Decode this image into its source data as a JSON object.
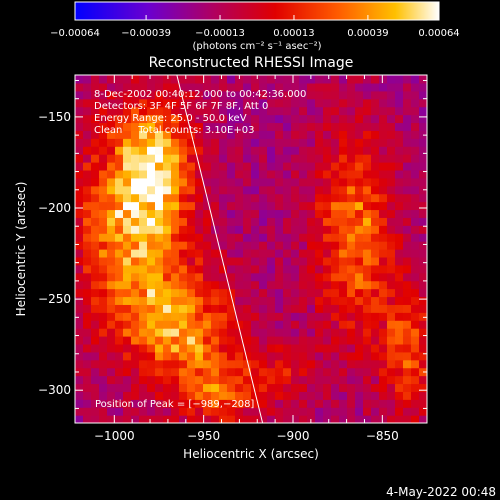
{
  "chart_data": {
    "type": "heatmap",
    "title": "Reconstructed RHESSI Image",
    "xlabel": "Heliocentric X (arcsec)",
    "ylabel": "Heliocentric Y (arcsec)",
    "xlim": [
      -1022,
      -825
    ],
    "ylim": [
      -318,
      -127
    ],
    "x_ticks": [
      -1000,
      -950,
      -900,
      -850
    ],
    "y_ticks": [
      -150,
      -200,
      -250,
      -300
    ],
    "x_tick_labels": [
      "−1000",
      "−950",
      "−900",
      "−850"
    ],
    "y_tick_labels": [
      "−150",
      "−200",
      "−250",
      "−300"
    ],
    "colorbar": {
      "min": -0.00064,
      "max": 0.00064,
      "ticks": [
        -0.00064,
        -0.00039,
        -0.00013,
        0.00013,
        0.00039,
        0.00064
      ],
      "tick_labels": [
        "−0.00064",
        "−0.00039",
        "−0.00013",
        "0.00013",
        "0.00039",
        "0.00064"
      ],
      "units": "(photons cm⁻² s⁻¹ asec⁻²)",
      "colors": [
        "#0000ff",
        "#6a00d0",
        "#b00060",
        "#e00000",
        "#ff5a00",
        "#ffc000",
        "#ffffff"
      ]
    },
    "annotations": [
      "8-Dec-2002 00:40:12.000 to 00:42:36.000",
      "Detectors: 3F 4F 5F 6F 7F 8F, Att 0",
      "Energy Range: 25.0 - 50.0 keV",
      "Clean     Total counts: 3.10E+03"
    ],
    "peak_label": "Position of Peak = [−989,−208]",
    "peak": [
      -989,
      -208
    ],
    "limb_line": [
      [
        -965,
        -127
      ],
      [
        -917,
        -318
      ]
    ],
    "sources": [
      {
        "x": -990,
        "y": -210,
        "sx": 20,
        "sy": 42,
        "amp": 0.00062
      },
      {
        "x": -975,
        "y": -175,
        "sx": 14,
        "sy": 22,
        "amp": 0.00045
      },
      {
        "x": -960,
        "y": -265,
        "sx": 20,
        "sy": 22,
        "amp": 0.0005
      },
      {
        "x": -940,
        "y": -300,
        "sx": 16,
        "sy": 14,
        "amp": 0.00035
      },
      {
        "x": -865,
        "y": -215,
        "sx": 16,
        "sy": 38,
        "amp": 0.00048
      },
      {
        "x": -835,
        "y": -280,
        "sx": 12,
        "sy": 25,
        "amp": 0.00035
      },
      {
        "x": -905,
        "y": -290,
        "sx": 14,
        "sy": 12,
        "amp": 0.0002
      }
    ],
    "background": -0.00017
  },
  "footer": {
    "timestamp": "4-May-2022 00:48"
  }
}
